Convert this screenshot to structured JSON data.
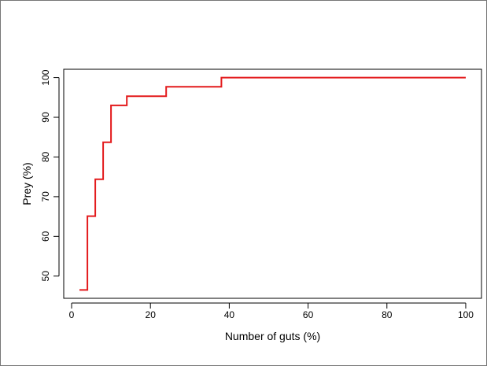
{
  "chart_data": {
    "type": "line",
    "line_style": "step",
    "series": [
      {
        "color": "#e31a1c",
        "x": [
          2,
          4,
          4,
          6,
          6,
          8,
          8,
          10,
          10,
          14,
          14,
          24,
          24,
          38,
          38,
          100
        ],
        "y": [
          46.5,
          46.5,
          65.1,
          65.1,
          74.4,
          74.4,
          83.7,
          83.7,
          93.0,
          93.0,
          95.3,
          95.3,
          97.7,
          97.7,
          100,
          100
        ]
      }
    ],
    "xlabel": "Number of guts (%)",
    "ylabel": "Prey (%)",
    "xlim": [
      -2,
      104
    ],
    "ylim": [
      44.4,
      102.1
    ],
    "xticks": [
      0,
      20,
      40,
      60,
      80,
      100
    ],
    "yticks": [
      50,
      60,
      70,
      80,
      90,
      100
    ],
    "grid": false,
    "legend": "none"
  }
}
